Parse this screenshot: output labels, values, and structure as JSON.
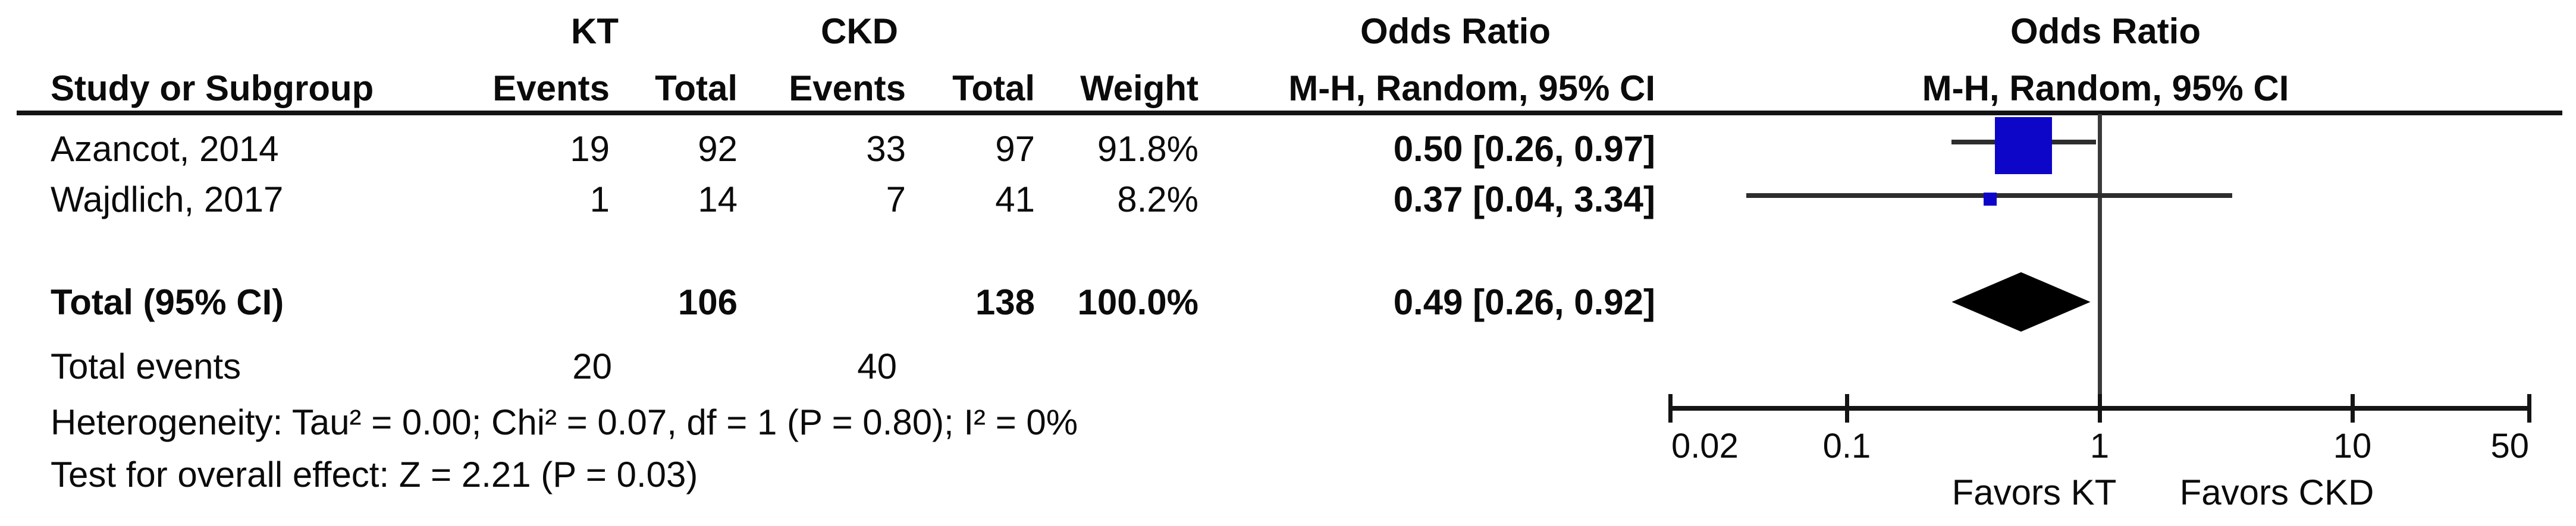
{
  "table": {
    "group_headers": {
      "kt": "KT",
      "ckd": "CKD",
      "or_left": "Odds Ratio",
      "or_right": "Odds Ratio"
    },
    "col_headers": {
      "study": "Study or Subgroup",
      "kt_events": "Events",
      "kt_total": "Total",
      "ckd_events": "Events",
      "ckd_total": "Total",
      "weight": "Weight",
      "mh_left": "M-H, Random, 95% CI",
      "mh_right": "M-H, Random, 95% CI"
    },
    "rows": [
      {
        "study": "Azancot, 2014",
        "kt_events": "19",
        "kt_total": "92",
        "ckd_events": "33",
        "ckd_total": "97",
        "weight": "91.8%",
        "or_ci": "0.50 [0.26, 0.97]"
      },
      {
        "study": "Wajdlich, 2017",
        "kt_events": "1",
        "kt_total": "14",
        "ckd_events": "7",
        "ckd_total": "41",
        "weight": "8.2%",
        "or_ci": "0.37 [0.04, 3.34]"
      }
    ],
    "total_row": {
      "label": "Total (95% CI)",
      "kt_total": "106",
      "ckd_total": "138",
      "weight": "100.0%",
      "or_ci": "0.49 [0.26, 0.92]"
    },
    "total_events": {
      "label": "Total events",
      "kt": "20",
      "ckd": "40"
    },
    "heterogeneity": "Heterogeneity: Tau² = 0.00; Chi² = 0.07, df = 1 (P = 0.80); I² = 0%",
    "overall_effect": "Test for overall effect: Z = 2.21 (P = 0.03)"
  },
  "chart_data": {
    "type": "forest",
    "effect_measure": "Odds Ratio",
    "method": "M-H, Random, 95% CI",
    "x_scale": "log",
    "axis_range": [
      0.02,
      50
    ],
    "axis_ticks": [
      0.02,
      0.1,
      1,
      10,
      50
    ],
    "tick_labels": [
      "0.02",
      "0.1",
      "1",
      "10",
      "50"
    ],
    "null_line": 1,
    "studies": [
      {
        "name": "Azancot, 2014",
        "or": 0.5,
        "ci_low": 0.26,
        "ci_high": 0.97,
        "weight_pct": 91.8
      },
      {
        "name": "Wajdlich, 2017",
        "or": 0.37,
        "ci_low": 0.04,
        "ci_high": 3.34,
        "weight_pct": 8.2
      }
    ],
    "total": {
      "or": 0.49,
      "ci_low": 0.26,
      "ci_high": 0.92
    },
    "favors_left": "Favors KT",
    "favors_right": "Favors CKD",
    "marker_color": "#0d06c9",
    "diamond_color": "#000000"
  }
}
